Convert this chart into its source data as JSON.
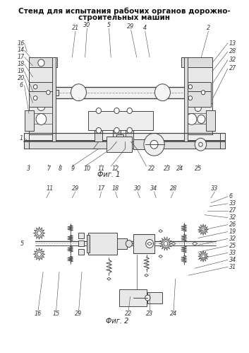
{
  "title_line1": "Стенд для испытания рабочих органов дорожно-",
  "title_line2": "строительных машин",
  "fig1_caption": "Фиг. 1",
  "fig2_caption": "Фиг. 2",
  "bg_color": "#ffffff",
  "lc": "#444444",
  "lbl": "#333333",
  "title_fontsize": 7.5,
  "label_fontsize": 5.8,
  "caption_fontsize": 7.0
}
